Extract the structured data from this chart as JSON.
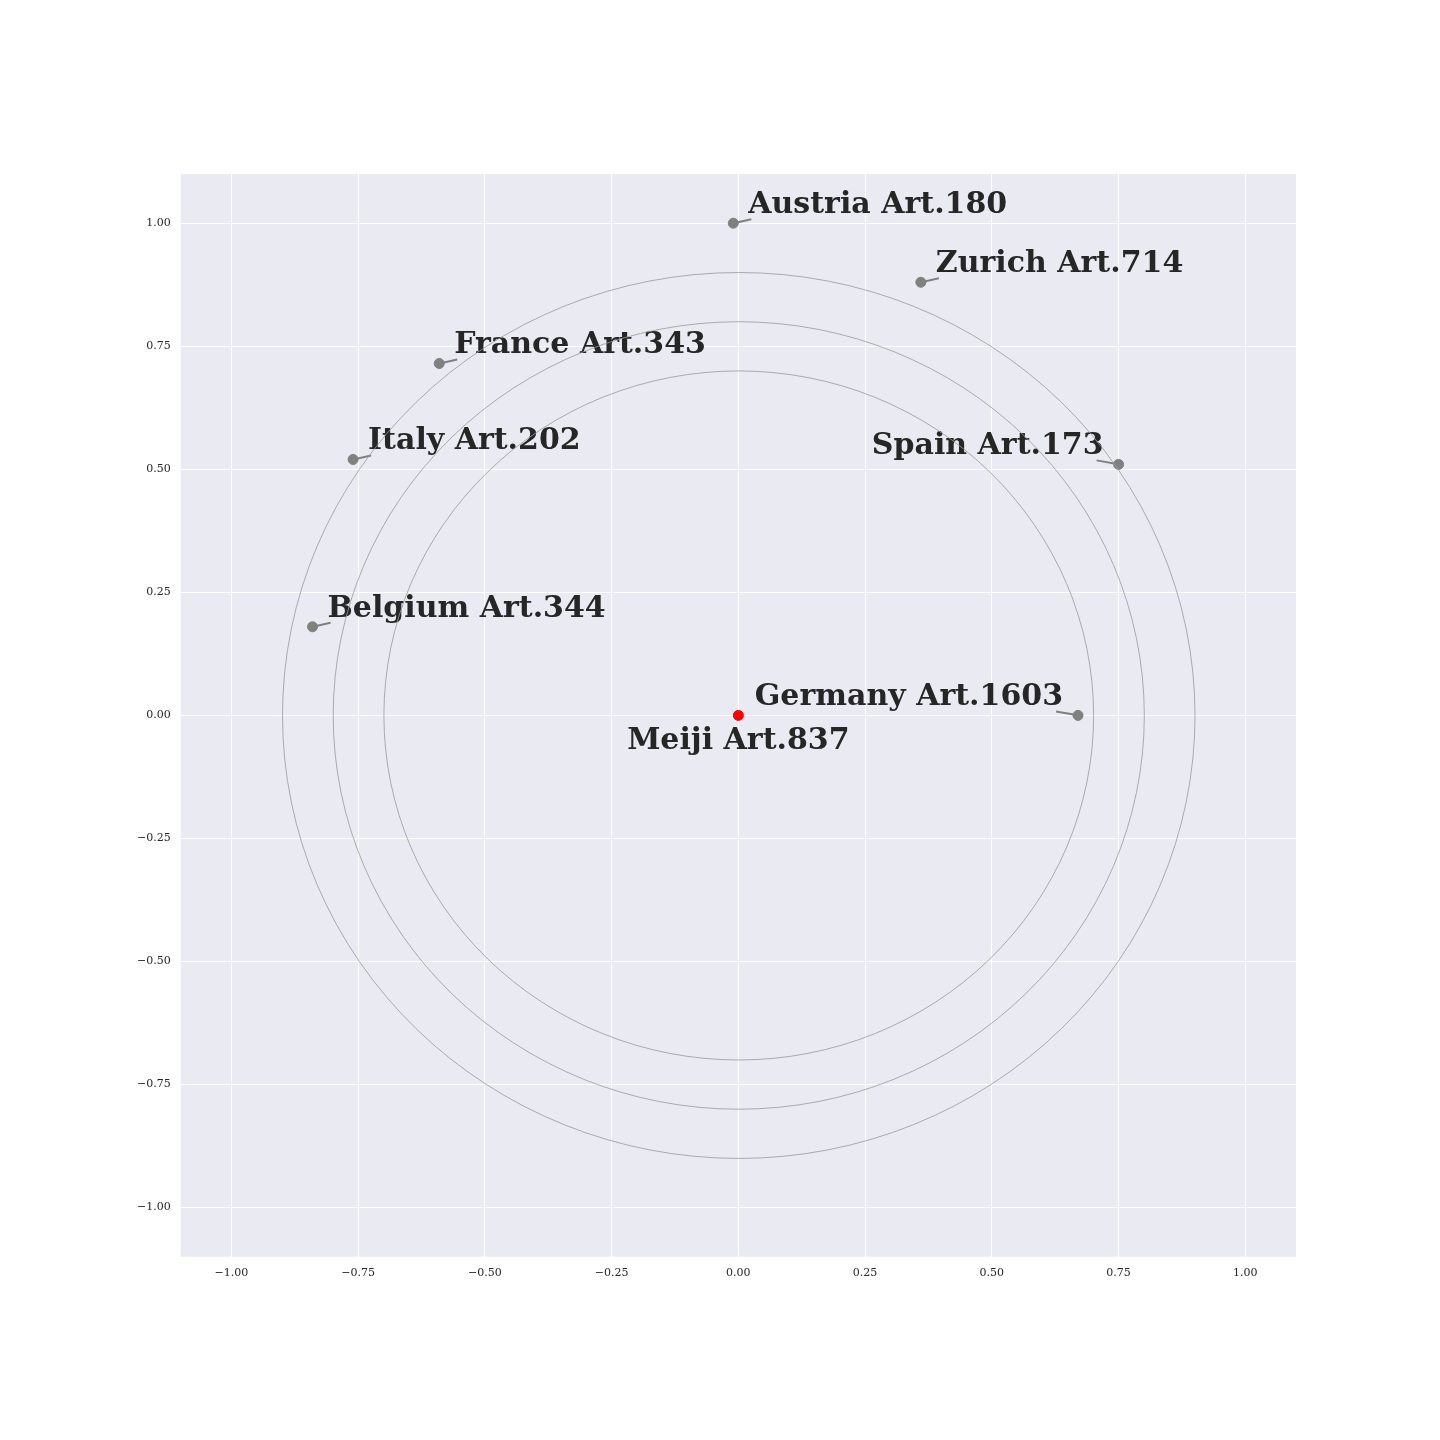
{
  "chart_data": {
    "type": "scatter",
    "xlim": [
      -1.1,
      1.1
    ],
    "ylim": [
      -1.1,
      1.1
    ],
    "xticks": [
      {
        "value": -1,
        "label": "−1.00"
      },
      {
        "value": -0.75,
        "label": "−0.75"
      },
      {
        "value": -0.5,
        "label": "−0.50"
      },
      {
        "value": -0.25,
        "label": "−0.25"
      },
      {
        "value": 0,
        "label": "0.00"
      },
      {
        "value": 0.25,
        "label": "0.25"
      },
      {
        "value": 0.5,
        "label": "0.50"
      },
      {
        "value": 0.75,
        "label": "0.75"
      },
      {
        "value": 1,
        "label": "1.00"
      }
    ],
    "yticks": [
      {
        "value": -1,
        "label": "−1.00"
      },
      {
        "value": -0.75,
        "label": "−0.75"
      },
      {
        "value": -0.5,
        "label": "−0.50"
      },
      {
        "value": -0.25,
        "label": "−0.25"
      },
      {
        "value": 0,
        "label": "0.00"
      },
      {
        "value": 0.25,
        "label": "0.25"
      },
      {
        "value": 0.5,
        "label": "0.50"
      },
      {
        "value": 0.75,
        "label": "0.75"
      },
      {
        "value": 1,
        "label": "1.00"
      }
    ],
    "grid": true,
    "series": [
      {
        "marker": "circle",
        "color": "#808080",
        "x": [
          -0.01,
          0.36,
          -0.59,
          -0.76,
          0.75,
          -0.84,
          0.67
        ],
        "values": [
          1.0,
          0.88,
          0.715,
          0.52,
          0.51,
          0.18,
          0.0
        ]
      },
      {
        "marker": "circle",
        "color": "#ff0000",
        "x": [
          0
        ],
        "values": [
          0
        ]
      }
    ],
    "annotations": [
      {
        "text": "Austria Art.180",
        "x": -0.01,
        "y": 1.0
      },
      {
        "text": "Zurich Art.714",
        "x": 0.36,
        "y": 0.88
      },
      {
        "text": "France Art.343",
        "x": -0.59,
        "y": 0.715
      },
      {
        "text": "Italy Art.202",
        "x": -0.76,
        "y": 0.52
      },
      {
        "text": "Spain Art.173",
        "x": 0.75,
        "y": 0.51
      },
      {
        "text": "Belgium Art.344",
        "x": -0.84,
        "y": 0.18
      },
      {
        "text": "Germany Art.1603",
        "x": 0.67,
        "y": 0.0
      },
      {
        "text": "Meiji Art.837",
        "x": 0,
        "y": 0
      }
    ]
  }
}
